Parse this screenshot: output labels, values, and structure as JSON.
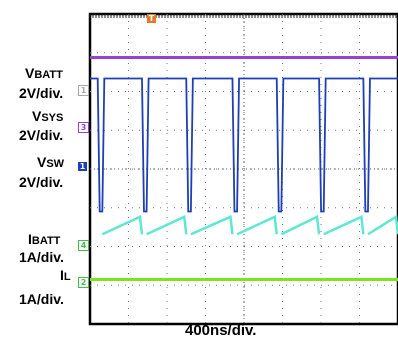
{
  "chart_data": {
    "type": "line",
    "time_scale": "400ns/div.",
    "x_divisions": 8,
    "y_divisions": 8,
    "grid": true,
    "channels": [
      {
        "key": "vbatt",
        "label_main": "V",
        "label_sub": "BATT",
        "scale": "2V/div.",
        "marker": "1",
        "color": "#a6a6a6",
        "trace_color": "#9b3fcf",
        "level_div": 1.25
      },
      {
        "key": "vsys",
        "label_main": "V",
        "label_sub": "SYS",
        "scale": "2V/div.",
        "marker": "3",
        "color": "#9b3fcf",
        "trace_color": "#1f3fb5",
        "high_div": 2.0,
        "low_div": 5.2,
        "pulse_width_div": 0.12
      },
      {
        "key": "vsw",
        "label_main": "V",
        "label_sub": "SW",
        "scale": "2V/div.",
        "marker": "1",
        "color": "#1f3fb5",
        "trace_color": "#5ee8d0",
        "base_div": 5.4,
        "ripple_div": 0.45
      },
      {
        "key": "ibatt",
        "label_main": "I",
        "label_sub": "BATT",
        "scale": "1A/div.",
        "marker": "4",
        "color": "#43c043",
        "trace_color": "#7fe21f",
        "level_div": 6.8
      },
      {
        "key": "il",
        "label_main": "I",
        "label_sub": "L",
        "scale": "1A/div.",
        "marker": "2",
        "color": "#43c043"
      }
    ],
    "trigger_marker": "T",
    "pulse_times_div": [
      0.2,
      1.35,
      2.5,
      3.7,
      4.85,
      5.95,
      7.1
    ]
  }
}
